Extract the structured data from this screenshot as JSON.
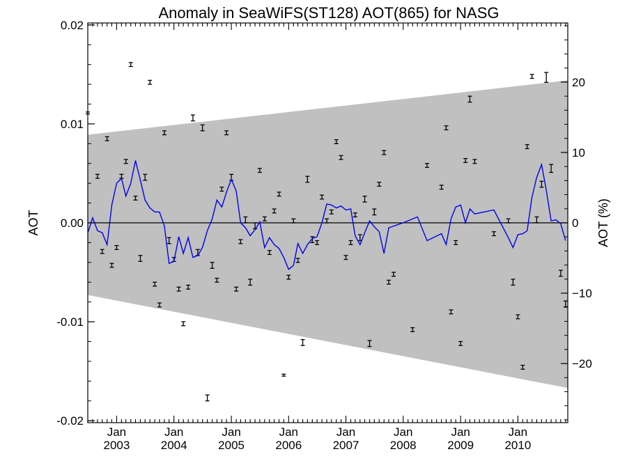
{
  "chart_data": {
    "type": "scatter",
    "title": "Anomaly in SeaWiFS(ST128) AOT(865) for NASG",
    "ylabel": "AOT",
    "y2label": "AOT (%)",
    "xlabel": "",
    "xlim": [
      "2002-07-01",
      "2010-11-15"
    ],
    "ylim": [
      -0.0202,
      0.0202
    ],
    "y2lim": [
      -28.4,
      28.4
    ],
    "yticks": [
      "0.02",
      "0.01",
      "0.00",
      "-0.01",
      "-0.02"
    ],
    "y2ticks": [
      "20",
      "10",
      "0",
      "−10",
      "−20"
    ],
    "xtick_labels": [
      {
        "month": "Jan",
        "year": "2003"
      },
      {
        "month": "Jan",
        "year": "2004"
      },
      {
        "month": "Jan",
        "year": "2005"
      },
      {
        "month": "Jan",
        "year": "2006"
      },
      {
        "month": "Jan",
        "year": "2007"
      },
      {
        "month": "Jan",
        "year": "2008"
      },
      {
        "month": "Jan",
        "year": "2009"
      },
      {
        "month": "Jan",
        "year": "2010"
      }
    ],
    "band": {
      "color": "#c0c0c0",
      "upper": [
        [
          "2002-07-01",
          0.0089
        ],
        [
          "2010-11-15",
          0.0144
        ]
      ],
      "lower": [
        [
          "2002-07-01",
          -0.0073
        ],
        [
          "2010-11-15",
          -0.0167
        ]
      ]
    },
    "zero_line_color": "#000000",
    "series": [
      {
        "type": "errorbar_points",
        "color": "#000000",
        "points": [
          [
            "2002-07-01",
            0.0111,
            0.0001
          ],
          [
            "2002-09-01",
            0.0047,
            0.0002
          ],
          [
            "2002-10-01",
            -0.0029,
            0.0002
          ],
          [
            "2002-11-01",
            0.0085,
            0.0002
          ],
          [
            "2002-12-01",
            -0.0043,
            0.0002
          ],
          [
            "2003-01-01",
            -0.0025,
            0.0002
          ],
          [
            "2003-02-01",
            0.0047,
            0.0002
          ],
          [
            "2003-03-01",
            0.0062,
            0.0002
          ],
          [
            "2003-04-01",
            0.016,
            0.0002
          ],
          [
            "2003-05-01",
            0.0025,
            0.0002
          ],
          [
            "2003-06-01",
            -0.0036,
            0.0003
          ],
          [
            "2003-07-01",
            0.0046,
            0.0003
          ],
          [
            "2003-08-01",
            0.0142,
            0.0002
          ],
          [
            "2003-09-01",
            -0.0062,
            0.0002
          ],
          [
            "2003-10-01",
            -0.0083,
            0.0002
          ],
          [
            "2003-11-01",
            0.0091,
            0.0002
          ],
          [
            "2003-12-01",
            -0.0018,
            0.0003
          ],
          [
            "2004-01-01",
            -0.0037,
            0.0002
          ],
          [
            "2004-02-01",
            -0.0067,
            0.0002
          ],
          [
            "2004-03-01",
            -0.0102,
            0.0002
          ],
          [
            "2004-04-01",
            -0.0065,
            0.0002
          ],
          [
            "2004-05-01",
            0.0106,
            0.0003
          ],
          [
            "2004-06-01",
            -0.003,
            0.0003
          ],
          [
            "2004-07-01",
            0.0096,
            0.0003
          ],
          [
            "2004-08-01",
            -0.0177,
            0.0003
          ],
          [
            "2004-09-01",
            -0.0043,
            0.0003
          ],
          [
            "2004-10-01",
            -0.0058,
            0.0002
          ],
          [
            "2004-11-01",
            0.0034,
            0.0002
          ],
          [
            "2004-12-01",
            0.0091,
            0.0002
          ],
          [
            "2005-01-01",
            0.0046,
            0.0003
          ],
          [
            "2005-02-01",
            -0.0067,
            0.0002
          ],
          [
            "2005-03-01",
            -0.0019,
            0.0002
          ],
          [
            "2005-04-01",
            0.0003,
            0.0003
          ],
          [
            "2005-05-01",
            -0.006,
            0.0003
          ],
          [
            "2005-06-01",
            -0.0003,
            0.0003
          ],
          [
            "2005-07-01",
            0.0053,
            0.0002
          ],
          [
            "2005-08-01",
            0.0004,
            0.0002
          ],
          [
            "2005-09-01",
            -0.003,
            0.0002
          ],
          [
            "2005-10-01",
            0.0012,
            0.0002
          ],
          [
            "2005-11-01",
            0.0029,
            0.0002
          ],
          [
            "2005-12-01",
            -0.0154,
            0.0001
          ],
          [
            "2006-01-01",
            -0.0055,
            0.0002
          ],
          [
            "2006-02-01",
            0.0002,
            0.0002
          ],
          [
            "2006-03-01",
            -0.0038,
            0.0002
          ],
          [
            "2006-04-01",
            -0.0121,
            0.0003
          ],
          [
            "2006-05-01",
            0.0044,
            0.0003
          ],
          [
            "2006-06-01",
            -0.0017,
            0.0003
          ],
          [
            "2006-07-01",
            -0.002,
            0.0002
          ],
          [
            "2006-08-01",
            0.0026,
            0.0002
          ],
          [
            "2006-09-01",
            0.0002,
            0.0002
          ],
          [
            "2006-10-01",
            0.0011,
            0.0002
          ],
          [
            "2006-11-01",
            0.0082,
            0.0002
          ],
          [
            "2006-12-01",
            0.0066,
            0.0002
          ],
          [
            "2007-01-01",
            -0.0035,
            0.0002
          ],
          [
            "2007-02-01",
            -0.002,
            0.0002
          ],
          [
            "2007-03-01",
            0.0008,
            0.0002
          ],
          [
            "2007-04-01",
            -0.0015,
            0.0003
          ],
          [
            "2007-05-01",
            0.0024,
            0.0003
          ],
          [
            "2007-06-01",
            -0.0122,
            0.0003
          ],
          [
            "2007-07-01",
            0.0011,
            0.0003
          ],
          [
            "2007-08-01",
            0.0039,
            0.0002
          ],
          [
            "2007-09-01",
            0.0071,
            0.0002
          ],
          [
            "2007-10-01",
            -0.006,
            0.0002
          ],
          [
            "2007-11-01",
            -0.0052,
            0.0002
          ],
          [
            "2008-03-01",
            -0.0108,
            0.0002
          ],
          [
            "2008-06-01",
            0.0058,
            0.0002
          ],
          [
            "2008-09-01",
            0.0036,
            0.0002
          ],
          [
            "2008-10-01",
            0.0096,
            0.0002
          ],
          [
            "2008-11-01",
            -0.009,
            0.0002
          ],
          [
            "2008-12-01",
            -0.002,
            0.0002
          ],
          [
            "2009-01-01",
            -0.0122,
            0.0002
          ],
          [
            "2009-02-01",
            0.0063,
            0.0002
          ],
          [
            "2009-03-01",
            0.0125,
            0.0003
          ],
          [
            "2009-04-01",
            0.0062,
            0.0002
          ],
          [
            "2009-08-01",
            -0.0011,
            0.0002
          ],
          [
            "2009-11-01",
            0.0002,
            0.0002
          ],
          [
            "2009-12-01",
            -0.006,
            0.0003
          ],
          [
            "2010-01-01",
            -0.0095,
            0.0002
          ],
          [
            "2010-02-01",
            -0.0146,
            0.0002
          ],
          [
            "2010-03-01",
            0.0077,
            0.0002
          ],
          [
            "2010-04-01",
            0.0148,
            0.0002
          ],
          [
            "2010-05-01",
            0.0003,
            0.0003
          ],
          [
            "2010-06-01",
            0.0039,
            0.0003
          ],
          [
            "2010-07-01",
            0.0147,
            0.0005
          ],
          [
            "2010-08-01",
            0.0055,
            0.0004
          ],
          [
            "2010-10-01",
            -0.0051,
            0.0003
          ],
          [
            "2010-11-01",
            -0.0082,
            0.0003
          ]
        ]
      },
      {
        "type": "line",
        "color": "#0000ee",
        "points": [
          [
            "2002-07-01",
            -0.001
          ],
          [
            "2002-08-01",
            0.0005
          ],
          [
            "2002-09-01",
            -0.0008
          ],
          [
            "2002-10-01",
            -0.001
          ],
          [
            "2002-11-01",
            -0.0022
          ],
          [
            "2002-12-01",
            0.0018
          ],
          [
            "2003-01-01",
            0.004
          ],
          [
            "2003-02-01",
            0.0045
          ],
          [
            "2003-03-01",
            0.0027
          ],
          [
            "2003-04-01",
            0.004
          ],
          [
            "2003-05-01",
            0.0063
          ],
          [
            "2003-06-01",
            0.0043
          ],
          [
            "2003-07-01",
            0.0023
          ],
          [
            "2003-08-01",
            0.0015
          ],
          [
            "2003-09-01",
            0.0011
          ],
          [
            "2003-10-01",
            0.0011
          ],
          [
            "2003-11-01",
            -0.0003
          ],
          [
            "2003-12-01",
            -0.0041
          ],
          [
            "2004-01-01",
            -0.0039
          ],
          [
            "2004-02-01",
            -0.0014
          ],
          [
            "2004-03-01",
            -0.0031
          ],
          [
            "2004-04-01",
            -0.0015
          ],
          [
            "2004-05-01",
            -0.0035
          ],
          [
            "2004-06-01",
            -0.0033
          ],
          [
            "2004-07-01",
            -0.0025
          ],
          [
            "2004-08-01",
            -0.0008
          ],
          [
            "2004-09-01",
            0.0004
          ],
          [
            "2004-10-01",
            0.0023
          ],
          [
            "2004-11-01",
            0.0016
          ],
          [
            "2004-12-01",
            0.0031
          ],
          [
            "2005-01-01",
            0.0044
          ],
          [
            "2005-02-01",
            0.0032
          ],
          [
            "2005-03-01",
            0.0
          ],
          [
            "2005-04-01",
            -0.0005
          ],
          [
            "2005-05-01",
            -0.0013
          ],
          [
            "2005-06-01",
            -0.0007
          ],
          [
            "2005-07-01",
            0.0001
          ],
          [
            "2005-08-01",
            -0.0025
          ],
          [
            "2005-09-01",
            -0.0015
          ],
          [
            "2005-10-01",
            -0.0022
          ],
          [
            "2005-11-01",
            -0.0026
          ],
          [
            "2005-12-01",
            -0.0035
          ],
          [
            "2006-01-01",
            -0.0047
          ],
          [
            "2006-02-01",
            -0.0043
          ],
          [
            "2006-03-01",
            -0.0021
          ],
          [
            "2006-04-01",
            -0.0031
          ],
          [
            "2006-05-01",
            -0.0022
          ],
          [
            "2006-06-01",
            -0.0016
          ],
          [
            "2006-07-01",
            -0.0014
          ],
          [
            "2006-08-01",
            0.0
          ],
          [
            "2006-09-01",
            0.0019
          ],
          [
            "2006-10-01",
            0.0018
          ],
          [
            "2006-11-01",
            0.0015
          ],
          [
            "2006-12-01",
            0.0017
          ],
          [
            "2007-01-01",
            0.0013
          ],
          [
            "2007-02-01",
            0.0014
          ],
          [
            "2007-03-01",
            -0.0013
          ],
          [
            "2007-04-01",
            -0.0022
          ],
          [
            "2007-05-01",
            -0.001
          ],
          [
            "2007-06-01",
            0.0002
          ],
          [
            "2007-07-01",
            -0.0004
          ],
          [
            "2007-08-01",
            -0.0009
          ],
          [
            "2007-09-01",
            -0.0031
          ],
          [
            "2007-10-01",
            -0.0005
          ],
          [
            "2008-01-01",
            0.0
          ],
          [
            "2008-04-01",
            0.0006
          ],
          [
            "2008-06-01",
            -0.0018
          ],
          [
            "2008-09-01",
            -0.0011
          ],
          [
            "2008-10-01",
            -0.0022
          ],
          [
            "2008-11-01",
            0.0004
          ],
          [
            "2008-12-01",
            0.0016
          ],
          [
            "2009-01-01",
            0.0018
          ],
          [
            "2009-02-01",
            0.0
          ],
          [
            "2009-03-01",
            0.0014
          ],
          [
            "2009-04-01",
            0.0009
          ],
          [
            "2009-08-01",
            0.0013
          ],
          [
            "2009-11-01",
            -0.0015
          ],
          [
            "2009-12-01",
            -0.0025
          ],
          [
            "2010-01-01",
            -0.0012
          ],
          [
            "2010-02-01",
            -0.0011
          ],
          [
            "2010-03-01",
            -0.0008
          ],
          [
            "2010-04-01",
            0.0026
          ],
          [
            "2010-05-01",
            0.0046
          ],
          [
            "2010-06-01",
            0.0059
          ],
          [
            "2010-07-01",
            0.0033
          ],
          [
            "2010-08-01",
            0.0002
          ],
          [
            "2010-09-01",
            0.0003
          ],
          [
            "2010-10-01",
            -0.0001
          ],
          [
            "2010-11-01",
            -0.0018
          ]
        ]
      }
    ]
  }
}
